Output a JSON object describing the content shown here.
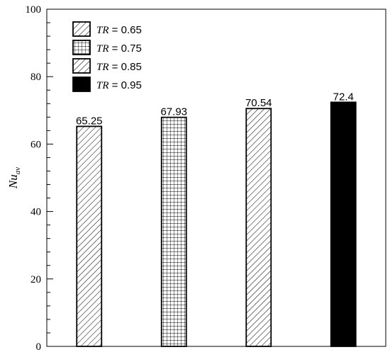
{
  "chart_data": {
    "type": "bar",
    "ylabel_main": "Nu",
    "ylabel_sub": "av",
    "ylim": [
      0,
      100
    ],
    "yticks": [
      "0",
      "20",
      "40",
      "60",
      "80",
      "100"
    ],
    "grid": false,
    "legend_position": "top-left",
    "series": [
      {
        "name_var": "TR",
        "name_value": "= 0.65",
        "value": 65.25,
        "label": "65.25",
        "pattern": "hatch-diagonal"
      },
      {
        "name_var": "TR",
        "name_value": "= 0.75",
        "value": 67.93,
        "label": "67.93",
        "pattern": "grid"
      },
      {
        "name_var": "TR",
        "name_value": "= 0.85",
        "value": 70.54,
        "label": "70.54",
        "pattern": "hatch-diagonal"
      },
      {
        "name_var": "TR",
        "name_value": "= 0.95",
        "value": 72.4,
        "label": "72.4",
        "pattern": "solid-black"
      }
    ]
  }
}
